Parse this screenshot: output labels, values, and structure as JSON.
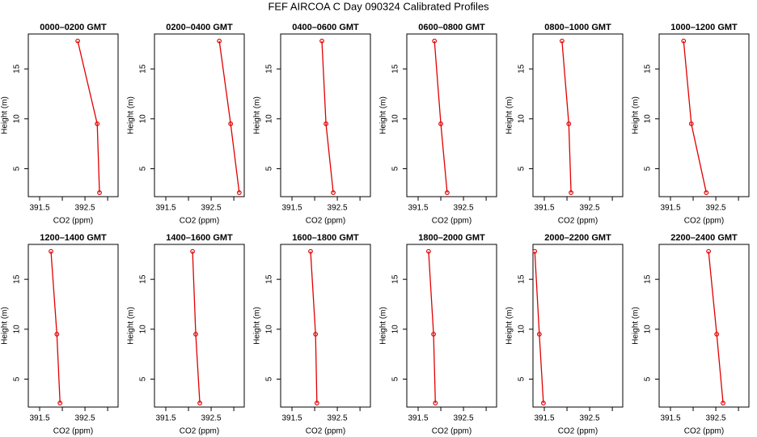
{
  "title": "FEF AIRCOA C  Day 090324  Calibrated Profiles",
  "chart_data": [
    {
      "type": "line",
      "title": "0000–0200 GMT",
      "xlabel": "CO2 (ppm)",
      "ylabel": "Height (m)",
      "color": "#e00000",
      "xlim": [
        391.25,
        393.23
      ],
      "ylim": [
        2.2,
        18.5
      ],
      "xticks": [
        391.5,
        392.5
      ],
      "xminorticks": [
        392,
        393
      ],
      "yticks": [
        5,
        10,
        15
      ],
      "x": [
        392.34,
        392.77,
        392.82
      ],
      "y": [
        17.8,
        9.5,
        2.6
      ]
    },
    {
      "type": "line",
      "title": "0200–0400 GMT",
      "xlabel": "CO2 (ppm)",
      "ylabel": "Height (m)",
      "color": "#e00000",
      "xlim": [
        391.25,
        393.23
      ],
      "ylim": [
        2.2,
        18.5
      ],
      "xticks": [
        391.5,
        392.5
      ],
      "xminorticks": [
        392,
        393
      ],
      "yticks": [
        5,
        10,
        15
      ],
      "x": [
        392.68,
        392.93,
        393.12
      ],
      "y": [
        17.8,
        9.5,
        2.6
      ]
    },
    {
      "type": "line",
      "title": "0400–0600 GMT",
      "xlabel": "CO2 (ppm)",
      "ylabel": "Height (m)",
      "color": "#e00000",
      "xlim": [
        391.25,
        393.23
      ],
      "ylim": [
        2.2,
        18.5
      ],
      "xticks": [
        391.5,
        392.5
      ],
      "xminorticks": [
        392,
        393
      ],
      "yticks": [
        5,
        10,
        15
      ],
      "x": [
        392.16,
        392.25,
        392.41
      ],
      "y": [
        17.8,
        9.5,
        2.6
      ]
    },
    {
      "type": "line",
      "title": "0600–0800 GMT",
      "xlabel": "CO2 (ppm)",
      "ylabel": "Height (m)",
      "color": "#e00000",
      "xlim": [
        391.25,
        393.23
      ],
      "ylim": [
        2.2,
        18.5
      ],
      "xticks": [
        391.5,
        392.5
      ],
      "xminorticks": [
        392,
        393
      ],
      "yticks": [
        5,
        10,
        15
      ],
      "x": [
        391.86,
        392.0,
        392.14
      ],
      "y": [
        17.8,
        9.5,
        2.6
      ]
    },
    {
      "type": "line",
      "title": "0800–1000 GMT",
      "xlabel": "CO2 (ppm)",
      "ylabel": "Height (m)",
      "color": "#e00000",
      "xlim": [
        391.25,
        393.23
      ],
      "ylim": [
        2.2,
        18.5
      ],
      "xticks": [
        391.5,
        392.5
      ],
      "xminorticks": [
        392,
        393
      ],
      "yticks": [
        5,
        10,
        15
      ],
      "x": [
        391.89,
        392.04,
        392.09
      ],
      "y": [
        17.8,
        9.5,
        2.6
      ]
    },
    {
      "type": "line",
      "title": "1000–1200 GMT",
      "xlabel": "CO2 (ppm)",
      "ylabel": "Height (m)",
      "color": "#e00000",
      "xlim": [
        391.25,
        393.23
      ],
      "ylim": [
        2.2,
        18.5
      ],
      "xticks": [
        391.5,
        392.5
      ],
      "xminorticks": [
        392,
        393
      ],
      "yticks": [
        5,
        10,
        15
      ],
      "x": [
        391.79,
        391.96,
        392.29
      ],
      "y": [
        17.8,
        9.5,
        2.6
      ]
    },
    {
      "type": "line",
      "title": "1200–1400 GMT",
      "xlabel": "CO2 (ppm)",
      "ylabel": "Height (m)",
      "color": "#e00000",
      "xlim": [
        391.25,
        393.23
      ],
      "ylim": [
        2.2,
        18.5
      ],
      "xticks": [
        391.5,
        392.5
      ],
      "xminorticks": [
        392,
        393
      ],
      "yticks": [
        5,
        10,
        15
      ],
      "x": [
        391.75,
        391.88,
        391.95
      ],
      "y": [
        17.8,
        9.5,
        2.6
      ]
    },
    {
      "type": "line",
      "title": "1400–1600 GMT",
      "xlabel": "CO2 (ppm)",
      "ylabel": "Height (m)",
      "color": "#e00000",
      "xlim": [
        391.25,
        393.23
      ],
      "ylim": [
        2.2,
        18.5
      ],
      "xticks": [
        391.5,
        392.5
      ],
      "xminorticks": [
        392,
        393
      ],
      "yticks": [
        5,
        10,
        15
      ],
      "x": [
        392.09,
        392.16,
        392.25
      ],
      "y": [
        17.8,
        9.5,
        2.6
      ]
    },
    {
      "type": "line",
      "title": "1600–1800 GMT",
      "xlabel": "CO2 (ppm)",
      "ylabel": "Height (m)",
      "color": "#e00000",
      "xlim": [
        391.25,
        393.23
      ],
      "ylim": [
        2.2,
        18.5
      ],
      "xticks": [
        391.5,
        392.5
      ],
      "xminorticks": [
        392,
        393
      ],
      "yticks": [
        5,
        10,
        15
      ],
      "x": [
        391.91,
        392.02,
        392.05
      ],
      "y": [
        17.8,
        9.5,
        2.6
      ]
    },
    {
      "type": "line",
      "title": "1800–2000 GMT",
      "xlabel": "CO2 (ppm)",
      "ylabel": "Height (m)",
      "color": "#e00000",
      "xlim": [
        391.25,
        393.23
      ],
      "ylim": [
        2.2,
        18.5
      ],
      "xticks": [
        391.5,
        392.5
      ],
      "xminorticks": [
        392,
        393
      ],
      "yticks": [
        5,
        10,
        15
      ],
      "x": [
        391.73,
        391.84,
        391.88
      ],
      "y": [
        17.8,
        9.5,
        2.6
      ]
    },
    {
      "type": "line",
      "title": "2000–2200 GMT",
      "xlabel": "CO2 (ppm)",
      "ylabel": "Height (m)",
      "color": "#e00000",
      "xlim": [
        391.25,
        393.23
      ],
      "ylim": [
        2.2,
        18.5
      ],
      "xticks": [
        391.5,
        392.5
      ],
      "xminorticks": [
        392,
        393
      ],
      "yticks": [
        5,
        10,
        15
      ],
      "x": [
        391.29,
        391.39,
        391.48
      ],
      "y": [
        17.8,
        9.5,
        2.6
      ]
    },
    {
      "type": "line",
      "title": "2200–2400 GMT",
      "xlabel": "CO2 (ppm)",
      "ylabel": "Height (m)",
      "color": "#e00000",
      "xlim": [
        391.25,
        393.23
      ],
      "ylim": [
        2.2,
        18.5
      ],
      "xticks": [
        391.5,
        392.5
      ],
      "xminorticks": [
        392,
        393
      ],
      "yticks": [
        5,
        10,
        15
      ],
      "x": [
        392.34,
        392.52,
        392.66
      ],
      "y": [
        17.8,
        9.5,
        2.6
      ]
    }
  ]
}
